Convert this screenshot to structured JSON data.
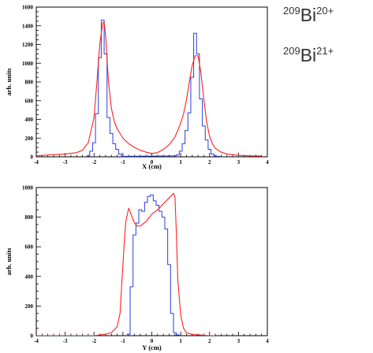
{
  "labels": {
    "ion1": {
      "mass": "209",
      "symbol": "Bi",
      "charge": "20+"
    },
    "ion2": {
      "mass": "209",
      "symbol": "Bi",
      "charge": "21+"
    }
  },
  "chart_data": [
    {
      "type": "line",
      "xlabel": "X (cm)",
      "ylabel": "arb. units",
      "xlim": [
        -4,
        4
      ],
      "ylim": [
        0,
        1600
      ],
      "xticks": [
        -4,
        -3,
        -2,
        -1,
        0,
        1,
        2,
        3,
        4
      ],
      "yticks": [
        0,
        200,
        400,
        600,
        800,
        1000,
        1200,
        1400,
        1600
      ],
      "series": [
        {
          "style": "histogram",
          "color": "#2a3fe0",
          "x": [
            -2.2,
            -2.1,
            -2.0,
            -1.9,
            -1.8,
            -1.7,
            -1.6,
            -1.5,
            -1.4,
            -1.3,
            -1.2,
            -1.1,
            -1.0,
            0.8,
            0.9,
            1.0,
            1.1,
            1.2,
            1.3,
            1.4,
            1.5,
            1.6,
            1.7,
            1.8,
            1.9,
            2.0,
            2.1,
            2.2,
            2.3
          ],
          "y": [
            10,
            60,
            150,
            460,
            1060,
            1460,
            1100,
            420,
            250,
            140,
            80,
            30,
            5,
            10,
            20,
            60,
            140,
            280,
            470,
            850,
            1320,
            1100,
            620,
            330,
            180,
            80,
            30,
            10,
            5
          ]
        },
        {
          "style": "line",
          "color": "#ff2020",
          "x": [
            -4.0,
            -3.6,
            -3.0,
            -2.6,
            -2.4,
            -2.2,
            -2.0,
            -1.9,
            -1.8,
            -1.7,
            -1.65,
            -1.6,
            -1.5,
            -1.4,
            -1.3,
            -1.2,
            -1.0,
            -0.8,
            -0.6,
            -0.4,
            -0.2,
            0.0,
            0.2,
            0.4,
            0.6,
            0.8,
            1.0,
            1.1,
            1.2,
            1.3,
            1.4,
            1.5,
            1.6,
            1.7,
            1.8,
            1.9,
            2.0,
            2.1,
            2.2,
            2.4,
            2.6,
            3.0,
            3.4,
            3.8
          ],
          "y": [
            10,
            20,
            30,
            45,
            70,
            150,
            420,
            800,
            1210,
            1430,
            1440,
            1300,
            800,
            520,
            380,
            300,
            200,
            140,
            100,
            70,
            50,
            35,
            45,
            80,
            130,
            210,
            360,
            460,
            610,
            800,
            980,
            1080,
            1080,
            900,
            620,
            370,
            220,
            140,
            90,
            50,
            30,
            15,
            10,
            8
          ]
        }
      ]
    },
    {
      "type": "line",
      "xlabel": "Y (cm)",
      "ylabel": "arb. units",
      "xlim": [
        -4,
        4
      ],
      "ylim": [
        0,
        1000
      ],
      "xticks": [
        -4,
        -3,
        -2,
        -1,
        0,
        1,
        2,
        3,
        4
      ],
      "yticks": [
        0,
        200,
        400,
        600,
        800,
        1000
      ],
      "series": [
        {
          "style": "histogram",
          "color": "#2a3fe0",
          "x": [
            -0.8,
            -0.7,
            -0.6,
            -0.5,
            -0.4,
            -0.3,
            -0.2,
            -0.1,
            0.0,
            0.1,
            0.2,
            0.3,
            0.4,
            0.5,
            0.6,
            0.7,
            0.8,
            0.9
          ],
          "y": [
            10,
            330,
            680,
            760,
            850,
            840,
            900,
            940,
            950,
            910,
            880,
            840,
            800,
            720,
            480,
            150,
            20,
            5
          ]
        },
        {
          "style": "line",
          "color": "#ff2020",
          "x": [
            -4.0,
            -3.0,
            -2.0,
            -1.6,
            -1.4,
            -1.2,
            -1.1,
            -1.0,
            -0.95,
            -0.9,
            -0.8,
            -0.7,
            -0.6,
            -0.5,
            -0.4,
            -0.2,
            0.0,
            0.2,
            0.4,
            0.6,
            0.7,
            0.75,
            0.8,
            0.85,
            0.9,
            1.0,
            1.1,
            1.2,
            1.4,
            1.8,
            2.0,
            2.2
          ],
          "y": [
            0,
            0,
            0,
            10,
            20,
            60,
            150,
            480,
            640,
            770,
            860,
            810,
            760,
            740,
            740,
            770,
            820,
            850,
            890,
            930,
            950,
            960,
            940,
            700,
            380,
            140,
            50,
            20,
            8,
            3,
            0,
            0
          ]
        }
      ]
    }
  ]
}
